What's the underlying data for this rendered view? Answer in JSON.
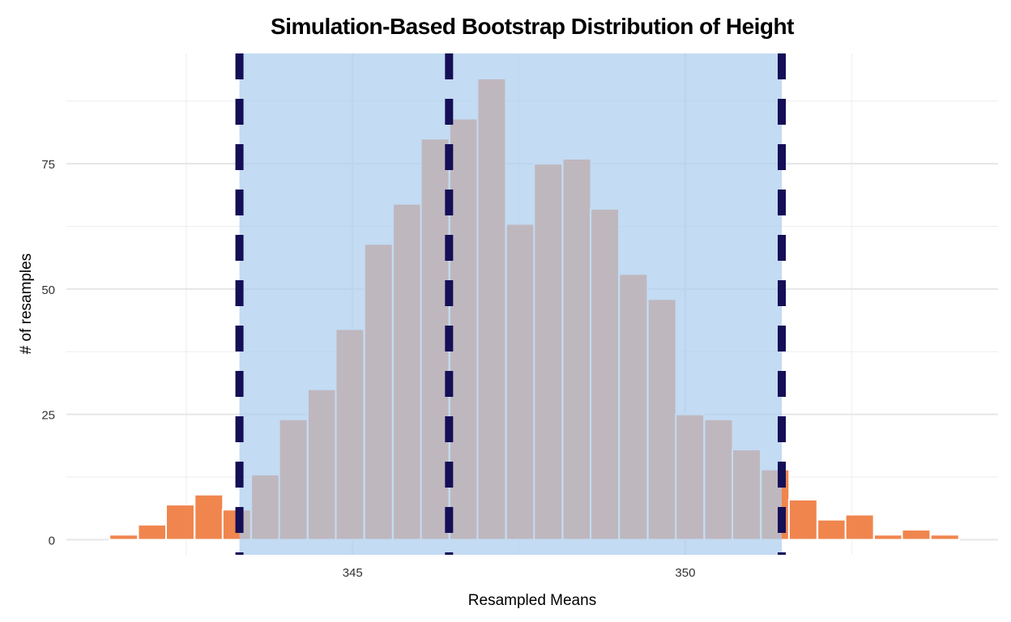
{
  "chart_data": {
    "type": "bar",
    "title": "Simulation-Based Bootstrap Distribution of Height",
    "xlabel": "Resampled Means",
    "ylabel": "# of resamples",
    "xlim": [
      340.7,
      354.7
    ],
    "ylim": [
      -3,
      97
    ],
    "x_ticks": [
      345,
      350
    ],
    "x_tick_labels": [
      "345",
      "350"
    ],
    "x_minor_grid": [
      342.5,
      347.5,
      352.5
    ],
    "y_ticks": [
      0,
      25,
      50,
      75
    ],
    "y_tick_labels": [
      "0",
      "25",
      "50",
      "75"
    ],
    "y_minor_grid": [
      12.5,
      37.5,
      62.5,
      87.5
    ],
    "grid": true,
    "bin_width": 0.4255,
    "bins": [
      {
        "x": 341.56,
        "count": 1
      },
      {
        "x": 341.99,
        "count": 3
      },
      {
        "x": 342.41,
        "count": 7
      },
      {
        "x": 342.84,
        "count": 9
      },
      {
        "x": 343.26,
        "count": 6
      },
      {
        "x": 343.69,
        "count": 13
      },
      {
        "x": 344.11,
        "count": 24
      },
      {
        "x": 344.54,
        "count": 30
      },
      {
        "x": 344.96,
        "count": 42
      },
      {
        "x": 345.39,
        "count": 59
      },
      {
        "x": 345.82,
        "count": 67
      },
      {
        "x": 346.24,
        "count": 80
      },
      {
        "x": 346.67,
        "count": 84
      },
      {
        "x": 347.09,
        "count": 92
      },
      {
        "x": 347.52,
        "count": 63
      },
      {
        "x": 347.94,
        "count": 75
      },
      {
        "x": 348.37,
        "count": 76
      },
      {
        "x": 348.79,
        "count": 66
      },
      {
        "x": 349.22,
        "count": 53
      },
      {
        "x": 349.65,
        "count": 48
      },
      {
        "x": 350.07,
        "count": 25
      },
      {
        "x": 350.5,
        "count": 24
      },
      {
        "x": 350.92,
        "count": 18
      },
      {
        "x": 351.35,
        "count": 14
      },
      {
        "x": 351.77,
        "count": 8
      },
      {
        "x": 352.2,
        "count": 4
      },
      {
        "x": 352.62,
        "count": 5
      },
      {
        "x": 353.05,
        "count": 1
      },
      {
        "x": 353.47,
        "count": 2
      },
      {
        "x": 353.9,
        "count": 1
      }
    ],
    "confidence_interval": [
      343.3,
      351.45
    ],
    "point_estimate": 346.45,
    "colors": {
      "bar": "#F0854E",
      "shade": "#AACCEE",
      "line": "#140F56",
      "grid": "#E6E6E6"
    }
  }
}
